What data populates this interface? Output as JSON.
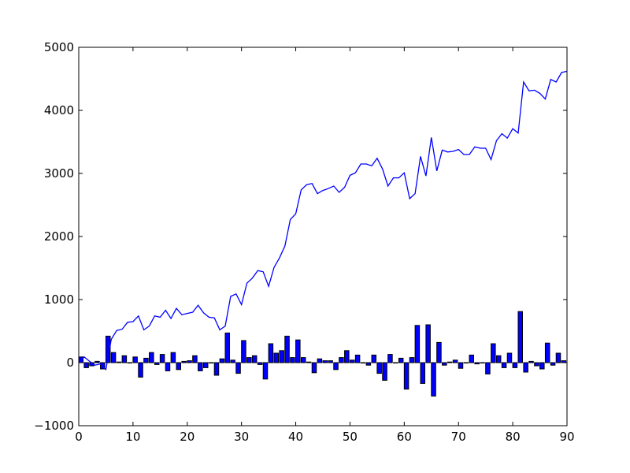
{
  "chart_data": {
    "type": "bar+line",
    "title": "",
    "xlabel": "",
    "ylabel": "",
    "xlim": [
      0,
      90
    ],
    "ylim": [
      -1000,
      5000
    ],
    "grid": false,
    "legend": "none",
    "x_ticks": [
      "0",
      "10",
      "20",
      "30",
      "40",
      "50",
      "60",
      "70",
      "80",
      "90"
    ],
    "y_ticks": [
      "−1000",
      "0",
      "1000",
      "2000",
      "3000",
      "4000",
      "5000"
    ],
    "colors": {
      "series": "#0000ff",
      "bar_edge": "#000000",
      "axes": "#000000"
    },
    "bars": [
      {
        "x": 0,
        "y": 90
      },
      {
        "x": 1,
        "y": -80
      },
      {
        "x": 2,
        "y": -50
      },
      {
        "x": 3,
        "y": 20
      },
      {
        "x": 4,
        "y": -100
      },
      {
        "x": 5,
        "y": 420
      },
      {
        "x": 6,
        "y": 160
      },
      {
        "x": 7,
        "y": 10
      },
      {
        "x": 8,
        "y": 110
      },
      {
        "x": 9,
        "y": 0
      },
      {
        "x": 10,
        "y": 90
      },
      {
        "x": 11,
        "y": -230
      },
      {
        "x": 12,
        "y": 70
      },
      {
        "x": 13,
        "y": 160
      },
      {
        "x": 14,
        "y": -30
      },
      {
        "x": 15,
        "y": 130
      },
      {
        "x": 16,
        "y": -130
      },
      {
        "x": 17,
        "y": 160
      },
      {
        "x": 18,
        "y": -110
      },
      {
        "x": 19,
        "y": 20
      },
      {
        "x": 20,
        "y": 30
      },
      {
        "x": 21,
        "y": 110
      },
      {
        "x": 22,
        "y": -130
      },
      {
        "x": 23,
        "y": -80
      },
      {
        "x": 24,
        "y": 0
      },
      {
        "x": 25,
        "y": -200
      },
      {
        "x": 26,
        "y": 60
      },
      {
        "x": 27,
        "y": 470
      },
      {
        "x": 28,
        "y": 40
      },
      {
        "x": 29,
        "y": -170
      },
      {
        "x": 30,
        "y": 350
      },
      {
        "x": 31,
        "y": 80
      },
      {
        "x": 32,
        "y": 110
      },
      {
        "x": 33,
        "y": -30
      },
      {
        "x": 34,
        "y": -260
      },
      {
        "x": 35,
        "y": 300
      },
      {
        "x": 36,
        "y": 150
      },
      {
        "x": 37,
        "y": 190
      },
      {
        "x": 38,
        "y": 420
      },
      {
        "x": 39,
        "y": 80
      },
      {
        "x": 40,
        "y": 360
      },
      {
        "x": 41,
        "y": 80
      },
      {
        "x": 42,
        "y": 10
      },
      {
        "x": 43,
        "y": -160
      },
      {
        "x": 44,
        "y": 60
      },
      {
        "x": 45,
        "y": 30
      },
      {
        "x": 46,
        "y": 30
      },
      {
        "x": 47,
        "y": -110
      },
      {
        "x": 48,
        "y": 80
      },
      {
        "x": 49,
        "y": 190
      },
      {
        "x": 50,
        "y": 40
      },
      {
        "x": 51,
        "y": 120
      },
      {
        "x": 52,
        "y": 0
      },
      {
        "x": 53,
        "y": -40
      },
      {
        "x": 54,
        "y": 120
      },
      {
        "x": 55,
        "y": -170
      },
      {
        "x": 56,
        "y": -280
      },
      {
        "x": 57,
        "y": 130
      },
      {
        "x": 58,
        "y": 0
      },
      {
        "x": 59,
        "y": 70
      },
      {
        "x": 60,
        "y": -420
      },
      {
        "x": 61,
        "y": 80
      },
      {
        "x": 62,
        "y": 590
      },
      {
        "x": 63,
        "y": -330
      },
      {
        "x": 64,
        "y": 600
      },
      {
        "x": 65,
        "y": -530
      },
      {
        "x": 66,
        "y": 320
      },
      {
        "x": 67,
        "y": -40
      },
      {
        "x": 68,
        "y": 10
      },
      {
        "x": 69,
        "y": 40
      },
      {
        "x": 70,
        "y": -90
      },
      {
        "x": 71,
        "y": 0
      },
      {
        "x": 72,
        "y": 120
      },
      {
        "x": 73,
        "y": -20
      },
      {
        "x": 74,
        "y": 0
      },
      {
        "x": 75,
        "y": -180
      },
      {
        "x": 76,
        "y": 300
      },
      {
        "x": 77,
        "y": 110
      },
      {
        "x": 78,
        "y": -80
      },
      {
        "x": 79,
        "y": 150
      },
      {
        "x": 80,
        "y": -80
      },
      {
        "x": 81,
        "y": 810
      },
      {
        "x": 82,
        "y": -150
      },
      {
        "x": 83,
        "y": 20
      },
      {
        "x": 84,
        "y": -50
      },
      {
        "x": 85,
        "y": -100
      },
      {
        "x": 86,
        "y": 310
      },
      {
        "x": 87,
        "y": -40
      },
      {
        "x": 88,
        "y": 150
      },
      {
        "x": 89,
        "y": 30
      }
    ],
    "line": {
      "x": [
        0,
        1,
        2,
        3,
        4,
        5,
        6,
        7,
        8,
        9,
        10,
        11,
        12,
        13,
        14,
        15,
        16,
        17,
        18,
        19,
        20,
        21,
        22,
        23,
        24,
        25,
        26,
        27,
        28,
        29,
        30,
        31,
        32,
        33,
        34,
        35,
        36,
        37,
        38,
        39,
        40,
        41,
        42,
        43,
        44,
        45,
        46,
        47,
        48,
        49,
        50,
        51,
        52,
        53,
        54,
        55,
        56,
        57,
        58,
        59,
        60,
        61,
        62,
        63,
        64,
        65,
        66,
        67,
        68,
        69,
        70,
        71,
        72,
        73,
        74,
        75,
        76,
        77,
        78,
        79,
        80,
        81,
        82,
        83,
        84,
        85,
        86,
        87,
        88,
        89,
        90
      ],
      "y": [
        0,
        90,
        20,
        -40,
        -20,
        -110,
        370,
        510,
        530,
        640,
        650,
        740,
        520,
        580,
        740,
        720,
        830,
        700,
        860,
        760,
        780,
        800,
        910,
        790,
        720,
        710,
        520,
        580,
        1050,
        1090,
        920,
        1260,
        1340,
        1460,
        1440,
        1210,
        1510,
        1660,
        1850,
        2270,
        2360,
        2740,
        2820,
        2840,
        2680,
        2730,
        2760,
        2800,
        2700,
        2780,
        2970,
        3010,
        3150,
        3150,
        3120,
        3240,
        3070,
        2800,
        2930,
        2930,
        3010,
        2600,
        2680,
        3270,
        2960,
        3570,
        3040,
        3370,
        3340,
        3350,
        3380,
        3300,
        3300,
        3420,
        3400,
        3400,
        3220,
        3520,
        3630,
        3560,
        3710,
        3640,
        4450,
        4310,
        4320,
        4270,
        4180,
        4490,
        4450,
        4600,
        4620
      ]
    }
  }
}
